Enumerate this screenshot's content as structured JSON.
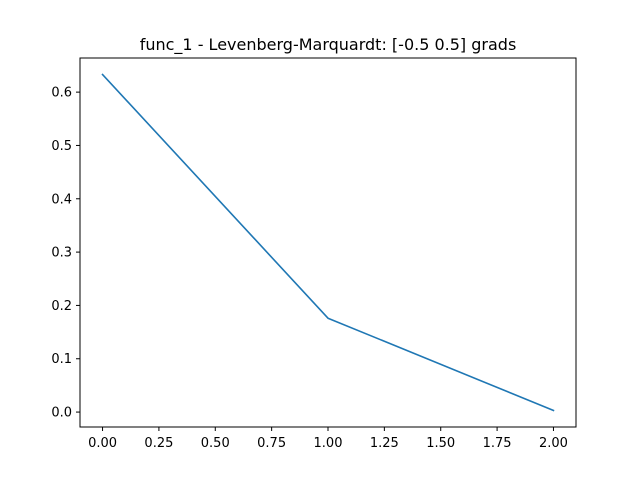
{
  "chart_data": {
    "type": "line",
    "title": "func_1 - Levenberg-Marquardt: [-0.5  0.5] grads",
    "xlabel": "",
    "ylabel": "",
    "xlim": [
      -0.1,
      2.1
    ],
    "ylim": [
      -0.028,
      0.664
    ],
    "grid": false,
    "legend": "none",
    "x_ticks": [
      "0.00",
      "0.25",
      "0.50",
      "0.75",
      "1.00",
      "1.25",
      "1.50",
      "1.75",
      "2.00"
    ],
    "y_ticks": [
      "0.0",
      "0.1",
      "0.2",
      "0.3",
      "0.4",
      "0.5",
      "0.6"
    ],
    "series": [
      {
        "x": [
          0,
          1,
          2
        ],
        "values": [
          0.633,
          0.176,
          0.003
        ],
        "color": "#1f77b4"
      }
    ]
  }
}
